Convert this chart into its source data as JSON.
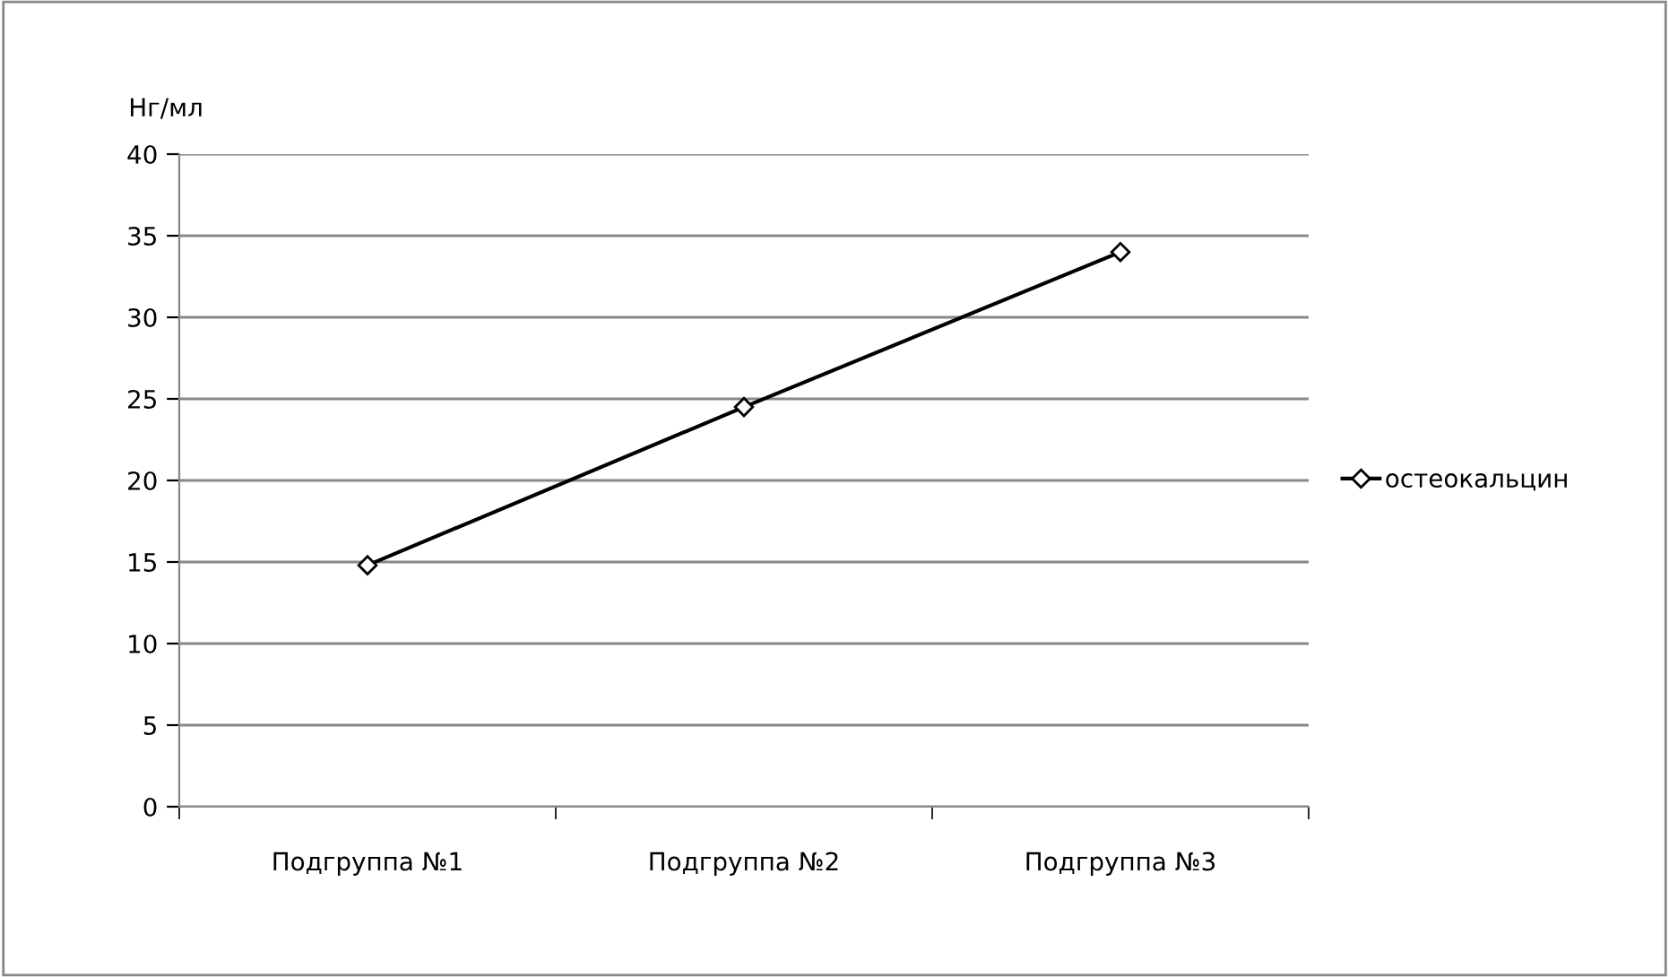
{
  "chart_data": {
    "type": "line",
    "ylabel": "Нг/мл",
    "categories": [
      "Подгруппа №1",
      "Подгруппа №2",
      "Подгруппа №3"
    ],
    "series": [
      {
        "name": "остеокальцин",
        "color": "#000000",
        "values": [
          14.8,
          24.5,
          34
        ]
      }
    ],
    "ylim": [
      0,
      40
    ],
    "yticks": [
      0,
      5,
      10,
      15,
      20,
      25,
      30,
      35,
      40
    ],
    "grid": "y",
    "legend": "right",
    "marker": "diamond",
    "line_style": "solid"
  }
}
